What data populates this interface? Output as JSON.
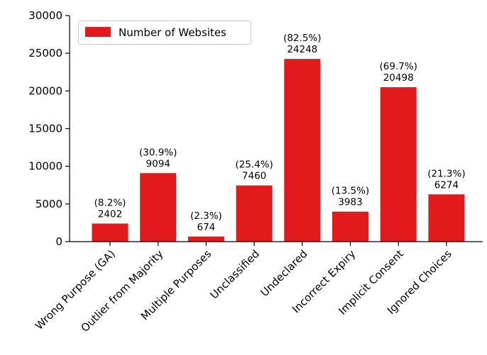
{
  "chart_data": {
    "type": "bar",
    "categories": [
      "Wrong Purpose (GA)",
      "Outlier from Majority",
      "Multiple Purposes",
      "Unclassified",
      "Undeclared",
      "Incorrect Expiry",
      "Implicit Consent",
      "Ignored Choices"
    ],
    "series": [
      {
        "name": "Number of Websites",
        "values": [
          2402,
          9094,
          674,
          7460,
          24248,
          3983,
          20498,
          6274
        ],
        "color": "#e31a1c"
      }
    ],
    "percent_labels": [
      "(8.2%)",
      "(30.9%)",
      "(2.3%)",
      "(25.4%)",
      "(82.5%)",
      "(13.5%)",
      "(69.7%)",
      "(21.3%)"
    ],
    "value_labels": [
      "2402",
      "9094",
      "674",
      "7460",
      "24248",
      "3983",
      "20498",
      "6274"
    ],
    "yticks": [
      0,
      5000,
      10000,
      15000,
      20000,
      25000,
      30000
    ],
    "ylim": [
      0,
      30000
    ],
    "title": "",
    "xlabel": "",
    "ylabel": "",
    "grid": false,
    "legend_position": "top-left"
  }
}
